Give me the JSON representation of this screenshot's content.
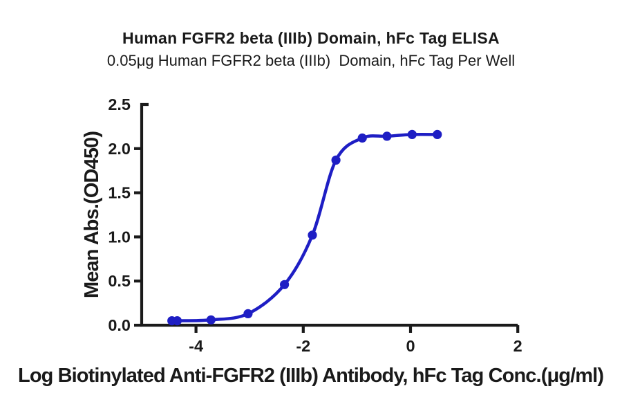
{
  "colors": {
    "curve": "#1e1ec4",
    "axis": "#1a1a1a",
    "background": "#ffffff"
  },
  "chart_data": {
    "type": "scatter",
    "subtype": "sigmoidal-dose-response-fit",
    "title": "Human FGFR2 beta (IIIb) Domain, hFc Tag ELISA",
    "subtitle": "0.05μg Human FGFR2 beta (IIIb)  Domain, hFc Tag Per Well",
    "xlabel": "Log Biotinylated Anti-FGFR2 (IIIb) Antibody, hFc Tag Conc.(μg/ml)",
    "ylabel": "Mean Abs.(OD450)",
    "xlim": [
      -5.05,
      2.05
    ],
    "ylim": [
      0,
      2.5
    ],
    "grid": false,
    "legend": false,
    "x_ticks": [
      {
        "v": -4,
        "label": "-4"
      },
      {
        "v": -2,
        "label": "-2"
      },
      {
        "v": 0,
        "label": "0"
      },
      {
        "v": 2,
        "label": "2"
      }
    ],
    "y_ticks": [
      {
        "v": 0,
        "label": "0.0"
      },
      {
        "v": 0.5,
        "label": "0.5"
      },
      {
        "v": 1,
        "label": "1.0"
      },
      {
        "v": 1.5,
        "label": "1.5"
      },
      {
        "v": 2,
        "label": "2.0"
      },
      {
        "v": 2.5,
        "label": "2.5"
      }
    ],
    "series": [
      {
        "marker": "circle",
        "fit": "sigmoid",
        "color": "#1e1ec4",
        "points": [
          {
            "x": -4.45,
            "y": 0.05
          },
          {
            "x": -4.35,
            "y": 0.05
          },
          {
            "x": -3.72,
            "y": 0.06
          },
          {
            "x": -3.03,
            "y": 0.13
          },
          {
            "x": -2.35,
            "y": 0.46
          },
          {
            "x": -1.83,
            "y": 1.02
          },
          {
            "x": -1.39,
            "y": 1.87
          },
          {
            "x": -0.9,
            "y": 2.12
          },
          {
            "x": -0.44,
            "y": 2.14
          },
          {
            "x": 0.03,
            "y": 2.16
          },
          {
            "x": 0.5,
            "y": 2.16
          }
        ]
      }
    ]
  }
}
